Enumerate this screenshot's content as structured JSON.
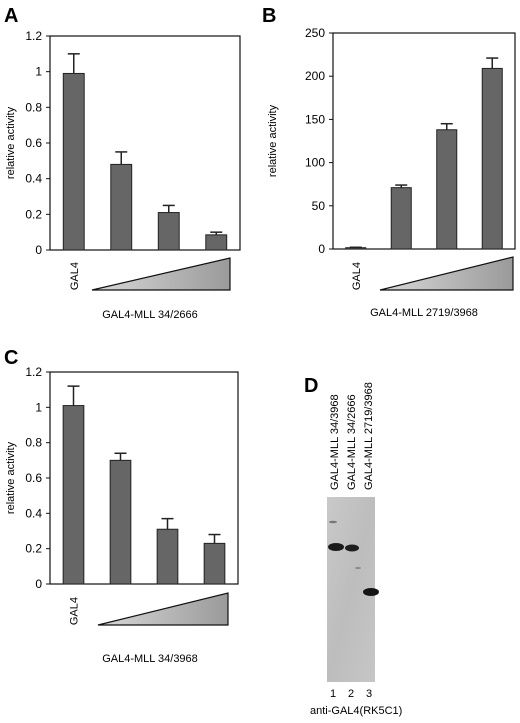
{
  "chart_data": [
    {
      "panel": "A",
      "type": "bar",
      "categories": [
        "GAL4",
        "",
        "",
        ""
      ],
      "values": [
        0.99,
        0.48,
        0.21,
        0.085
      ],
      "errors": [
        0.11,
        0.07,
        0.04,
        0.015
      ],
      "ylabel": "relative activity",
      "ylim": [
        0,
        1.2
      ],
      "yticks": [
        "0",
        "0.2",
        "0.4",
        "0.6",
        "0.8",
        "1",
        "1.2"
      ],
      "condition_label": "GAL4-MLL 34/2666",
      "bar_color": "#666666"
    },
    {
      "panel": "B",
      "type": "bar",
      "categories": [
        "GAL4",
        "",
        "",
        ""
      ],
      "values": [
        1.5,
        71,
        138,
        209
      ],
      "errors": [
        0.5,
        3,
        7,
        12
      ],
      "ylabel": "relative activity",
      "ylim": [
        0,
        250
      ],
      "yticks": [
        "0",
        "50",
        "100",
        "150",
        "200",
        "250"
      ],
      "condition_label": "GAL4-MLL 2719/3968",
      "bar_color": "#666666"
    },
    {
      "panel": "C",
      "type": "bar",
      "categories": [
        "GAL4",
        "",
        "",
        ""
      ],
      "values": [
        1.01,
        0.7,
        0.31,
        0.23
      ],
      "errors": [
        0.11,
        0.04,
        0.06,
        0.05
      ],
      "ylabel": "relative activity",
      "ylim": [
        0,
        1.2
      ],
      "yticks": [
        "0",
        "0.2",
        "0.4",
        "0.6",
        "0.8",
        "1",
        "1.2"
      ],
      "condition_label": "GAL4-MLL 34/3968",
      "bar_color": "#666666"
    }
  ],
  "blot": {
    "panel": "D",
    "lane_labels": [
      "GAL4-MLL 34/3968",
      "GAL4-MLL 34/2666",
      "GAL4-MLL 2719/3968"
    ],
    "lane_numbers": [
      "1",
      "2",
      "3"
    ],
    "caption": "anti-GAL4(RK5C1)"
  }
}
